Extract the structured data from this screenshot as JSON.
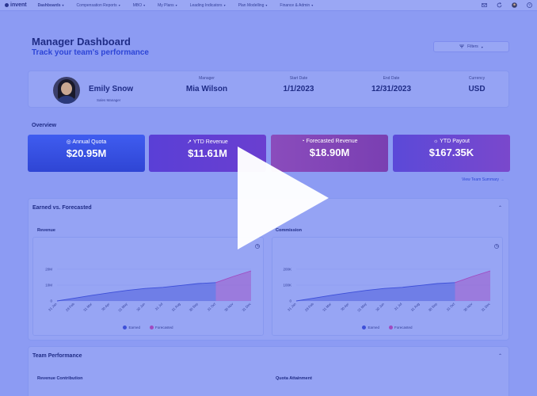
{
  "nav": {
    "logo": "invent",
    "items": [
      "Dashboards",
      "Compensation Reports",
      "MBO",
      "My Plans",
      "Leading Indicators",
      "Plan Modelling",
      "Finance & Admin"
    ],
    "active_index": 0
  },
  "header": {
    "title": "Manager Dashboard",
    "subtitle": "Track your team's performance",
    "filters_label": "Filters"
  },
  "profile": {
    "name": "Emily Snow",
    "role": "Sales Manager",
    "fields": [
      {
        "label": "Manager",
        "value": "Mia Wilson"
      },
      {
        "label": "Start Date",
        "value": "1/1/2023"
      },
      {
        "label": "End Date",
        "value": "12/31/2023"
      },
      {
        "label": "Currency",
        "value": "USD"
      }
    ]
  },
  "overview": {
    "label": "Overview",
    "kpis": [
      {
        "label": "Annual Quota",
        "value": "$20.95M",
        "icon": "target-icon"
      },
      {
        "label": "YTD Revenue",
        "value": "$11.61M",
        "icon": "trend-icon"
      },
      {
        "label": "Forecasted Revenue",
        "value": "$18.90M",
        "icon": "pie-icon"
      },
      {
        "label": "YTD Payout",
        "value": "$167.35K",
        "icon": "coin-icon"
      }
    ],
    "team_link": "View Team Summary"
  },
  "earned": {
    "title": "Earned vs. Forecasted",
    "legend": [
      "Earned",
      "Forecasted"
    ]
  },
  "team": {
    "title": "Team Performance",
    "charts": [
      "Revenue Contribution",
      "Quota Attainment"
    ]
  },
  "colors": {
    "earned": "#3d4fd8",
    "forecasted": "#a04ac0",
    "accent": "#2d45d6"
  },
  "chart_data": [
    {
      "type": "area",
      "title": "Revenue",
      "categories": [
        "31 Jan",
        "28 Feb",
        "31 Mar",
        "30 Apr",
        "31 May",
        "30 Jun",
        "31 Jul",
        "31 Aug",
        "30 Sep",
        "31 Oct",
        "30 Nov",
        "31 Dec"
      ],
      "yticks": [
        "0",
        "10M",
        "20M"
      ],
      "ylim": [
        0,
        24000000
      ],
      "series": [
        {
          "name": "Earned",
          "values": [
            0,
            1800000,
            3600000,
            5200000,
            6700000,
            7900000,
            8600000,
            9800000,
            11000000,
            11600000,
            null,
            null
          ]
        },
        {
          "name": "Forecasted",
          "values": [
            null,
            null,
            null,
            null,
            null,
            null,
            null,
            null,
            null,
            11600000,
            15500000,
            19000000
          ]
        }
      ]
    },
    {
      "type": "area",
      "title": "Commission",
      "categories": [
        "31 Jan",
        "28 Feb",
        "31 Mar",
        "30 Apr",
        "31 May",
        "30 Jun",
        "31 Jul",
        "31 Aug",
        "30 Sep",
        "31 Oct",
        "30 Nov",
        "31 Dec"
      ],
      "yticks": [
        "0",
        "100K",
        "200K"
      ],
      "ylim": [
        0,
        240000
      ],
      "series": [
        {
          "name": "Earned",
          "values": [
            0,
            18000,
            36000,
            52000,
            67000,
            79000,
            86000,
            98000,
            110000,
            116000,
            null,
            null
          ]
        },
        {
          "name": "Forecasted",
          "values": [
            null,
            null,
            null,
            null,
            null,
            null,
            null,
            null,
            null,
            116000,
            155000,
            190000
          ]
        }
      ]
    }
  ]
}
